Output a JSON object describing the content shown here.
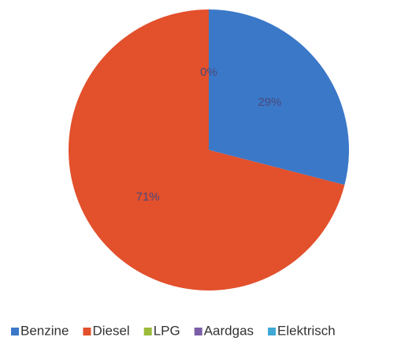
{
  "chart_data": {
    "type": "pie",
    "categories": [
      "Benzine",
      "Diesel",
      "LPG",
      "Aardgas",
      "Elektrisch"
    ],
    "values": [
      29,
      71,
      0,
      0,
      0
    ],
    "value_labels": [
      "29%",
      "71%",
      "0%",
      null,
      null
    ],
    "colors": [
      "#3b78c8",
      "#e2502c",
      "#9bbb3b",
      "#7b5ea7",
      "#3fa8d6"
    ],
    "legend": "bottom"
  }
}
